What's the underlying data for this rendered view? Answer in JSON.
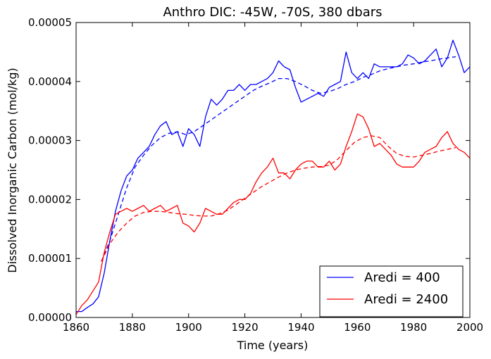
{
  "chart_data": {
    "type": "line",
    "title": "Anthro DIC: -45W, -70S, 380 dbars",
    "xlabel": "Time (years)",
    "ylabel": "Dissolved Inorganic Carbon (mol/kg)",
    "xlim": [
      1860,
      2000
    ],
    "ylim": [
      0,
      5e-05
    ],
    "xticks": [
      1860,
      1880,
      1900,
      1920,
      1940,
      1960,
      1980,
      2000
    ],
    "xtick_labels": [
      "1860",
      "1880",
      "1900",
      "1920",
      "1940",
      "1960",
      "1980",
      "2000"
    ],
    "yticks": [
      0,
      1e-05,
      2e-05,
      3e-05,
      4e-05,
      5e-05
    ],
    "ytick_labels": [
      "0.00000",
      "0.00001",
      "0.00002",
      "0.00003",
      "0.00004",
      "0.00005"
    ],
    "grid": false,
    "legend_position": "bottom-right",
    "series": [
      {
        "name": "Aredi = 400",
        "color": "#0000ff",
        "style": "solid",
        "x": [
          1860,
          1862,
          1864,
          1866,
          1868,
          1870,
          1872,
          1874,
          1876,
          1878,
          1880,
          1882,
          1884,
          1886,
          1888,
          1890,
          1892,
          1894,
          1896,
          1898,
          1900,
          1902,
          1904,
          1906,
          1908,
          1910,
          1912,
          1914,
          1916,
          1918,
          1920,
          1922,
          1924,
          1926,
          1928,
          1930,
          1932,
          1934,
          1936,
          1938,
          1940,
          1942,
          1944,
          1946,
          1948,
          1950,
          1952,
          1954,
          1956,
          1958,
          1960,
          1962,
          1964,
          1966,
          1968,
          1970,
          1972,
          1974,
          1976,
          1978,
          1980,
          1982,
          1984,
          1986,
          1988,
          1990,
          1992,
          1994,
          1996,
          1998,
          2000
        ],
        "y": [
          1e-06,
          1e-06,
          1.7e-06,
          2.3e-06,
          3.5e-06,
          7.5e-06,
          1.3e-05,
          1.8e-05,
          2.15e-05,
          2.4e-05,
          2.5e-05,
          2.7e-05,
          2.8e-05,
          2.9e-05,
          3.1e-05,
          3.25e-05,
          3.32e-05,
          3.1e-05,
          3.15e-05,
          2.9e-05,
          3.2e-05,
          3.1e-05,
          2.9e-05,
          3.4e-05,
          3.7e-05,
          3.6e-05,
          3.7e-05,
          3.85e-05,
          3.85e-05,
          3.95e-05,
          3.85e-05,
          3.95e-05,
          3.95e-05,
          4e-05,
          4.05e-05,
          4.15e-05,
          4.35e-05,
          4.25e-05,
          4.2e-05,
          3.9e-05,
          3.65e-05,
          3.7e-05,
          3.75e-05,
          3.8e-05,
          3.75e-05,
          3.9e-05,
          3.95e-05,
          4e-05,
          4.5e-05,
          4.15e-05,
          4.05e-05,
          4.15e-05,
          4.05e-05,
          4.3e-05,
          4.25e-05,
          4.25e-05,
          4.25e-05,
          4.25e-05,
          4.3e-05,
          4.45e-05,
          4.4e-05,
          4.3e-05,
          4.35e-05,
          4.45e-05,
          4.55e-05,
          4.25e-05,
          4.4e-05,
          4.7e-05,
          4.45e-05,
          4.15e-05,
          4.25e-05
        ]
      },
      {
        "name": "",
        "color": "#0000ff",
        "style": "dashed",
        "x": [
          1869,
          1872,
          1875,
          1878,
          1881,
          1884,
          1887,
          1890,
          1893,
          1896,
          1899,
          1902,
          1905,
          1908,
          1911,
          1914,
          1917,
          1920,
          1923,
          1926,
          1929,
          1932,
          1935,
          1938,
          1941,
          1944,
          1947,
          1950,
          1953,
          1956,
          1959,
          1962,
          1965,
          1968,
          1971,
          1974,
          1977,
          1980,
          1983,
          1986,
          1989,
          1992,
          1995
        ],
        "y": [
          9.5e-06,
          1.3e-05,
          1.75e-05,
          2.2e-05,
          2.55e-05,
          2.75e-05,
          2.92e-05,
          3.05e-05,
          3.12e-05,
          3.15e-05,
          3.1e-05,
          3.15e-05,
          3.25e-05,
          3.35e-05,
          3.45e-05,
          3.55e-05,
          3.65e-05,
          3.75e-05,
          3.85e-05,
          3.92e-05,
          3.98e-05,
          4.05e-05,
          4.05e-05,
          4e-05,
          3.93e-05,
          3.85e-05,
          3.8e-05,
          3.83e-05,
          3.88e-05,
          3.95e-05,
          4e-05,
          4.07e-05,
          4.12e-05,
          4.18e-05,
          4.22e-05,
          4.25e-05,
          4.28e-05,
          4.3e-05,
          4.33e-05,
          4.35e-05,
          4.38e-05,
          4.4e-05,
          4.42e-05
        ]
      },
      {
        "name": "Aredi = 2400",
        "color": "#ff0000",
        "style": "solid",
        "x": [
          1860,
          1862,
          1864,
          1866,
          1868,
          1870,
          1872,
          1874,
          1876,
          1878,
          1880,
          1882,
          1884,
          1886,
          1888,
          1890,
          1892,
          1894,
          1896,
          1898,
          1900,
          1902,
          1904,
          1906,
          1908,
          1910,
          1912,
          1914,
          1916,
          1918,
          1920,
          1922,
          1924,
          1926,
          1928,
          1930,
          1932,
          1934,
          1936,
          1938,
          1940,
          1942,
          1944,
          1946,
          1948,
          1950,
          1952,
          1954,
          1956,
          1958,
          1960,
          1962,
          1964,
          1966,
          1968,
          1970,
          1972,
          1974,
          1976,
          1978,
          1980,
          1982,
          1984,
          1986,
          1988,
          1990,
          1992,
          1994,
          1996,
          1998,
          2000
        ],
        "y": [
          5e-07,
          2e-06,
          3e-06,
          4.5e-06,
          6e-06,
          1.1e-05,
          1.45e-05,
          1.75e-05,
          1.8e-05,
          1.85e-05,
          1.8e-05,
          1.85e-05,
          1.9e-05,
          1.8e-05,
          1.85e-05,
          1.9e-05,
          1.8e-05,
          1.85e-05,
          1.9e-05,
          1.6e-05,
          1.55e-05,
          1.45e-05,
          1.6e-05,
          1.85e-05,
          1.8e-05,
          1.75e-05,
          1.75e-05,
          1.85e-05,
          1.95e-05,
          2e-05,
          2e-05,
          2.1e-05,
          2.3e-05,
          2.45e-05,
          2.55e-05,
          2.7e-05,
          2.45e-05,
          2.45e-05,
          2.35e-05,
          2.5e-05,
          2.6e-05,
          2.65e-05,
          2.65e-05,
          2.55e-05,
          2.55e-05,
          2.65e-05,
          2.5e-05,
          2.6e-05,
          2.9e-05,
          3.15e-05,
          3.45e-05,
          3.4e-05,
          3.2e-05,
          2.9e-05,
          2.95e-05,
          2.85e-05,
          2.75e-05,
          2.6e-05,
          2.55e-05,
          2.55e-05,
          2.55e-05,
          2.65e-05,
          2.8e-05,
          2.85e-05,
          2.9e-05,
          3.05e-05,
          3.15e-05,
          2.95e-05,
          2.85e-05,
          2.8e-05,
          2.7e-05
        ]
      },
      {
        "name": "",
        "color": "#ff0000",
        "style": "dashed",
        "x": [
          1869,
          1872,
          1875,
          1878,
          1881,
          1884,
          1887,
          1890,
          1893,
          1896,
          1899,
          1902,
          1905,
          1908,
          1911,
          1914,
          1917,
          1920,
          1923,
          1926,
          1929,
          1932,
          1935,
          1938,
          1941,
          1944,
          1947,
          1950,
          1953,
          1956,
          1959,
          1962,
          1965,
          1968,
          1971,
          1974,
          1977,
          1980,
          1983,
          1986,
          1989,
          1992,
          1995
        ],
        "y": [
          9.5e-06,
          1.25e-05,
          1.45e-05,
          1.6e-05,
          1.72e-05,
          1.78e-05,
          1.8e-05,
          1.8e-05,
          1.78e-05,
          1.76e-05,
          1.75e-05,
          1.73e-05,
          1.72e-05,
          1.72e-05,
          1.76e-05,
          1.82e-05,
          1.92e-05,
          2.02e-05,
          2.12e-05,
          2.22e-05,
          2.3e-05,
          2.38e-05,
          2.45e-05,
          2.5e-05,
          2.53e-05,
          2.55e-05,
          2.56e-05,
          2.58e-05,
          2.68e-05,
          2.83e-05,
          2.97e-05,
          3.05e-05,
          3.08e-05,
          3.05e-05,
          2.9e-05,
          2.78e-05,
          2.73e-05,
          2.72e-05,
          2.75e-05,
          2.78e-05,
          2.82e-05,
          2.85e-05,
          2.88e-05
        ]
      }
    ]
  }
}
